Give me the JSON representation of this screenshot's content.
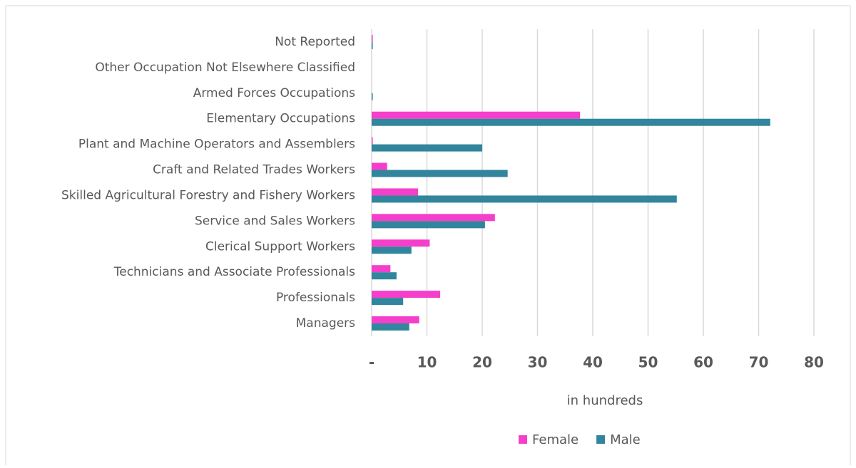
{
  "chart_data": {
    "type": "bar",
    "orientation": "horizontal",
    "x_label": "in hundreds",
    "categories": [
      "Not Reported",
      "Other Occupation Not Elsewhere Classified",
      "Armed Forces Occupations",
      "Elementary Occupations",
      "Plant and Machine Operators and Assemblers",
      "Craft and Related Trades Workers",
      "Skilled Agricultural Forestry and Fishery Workers",
      "Service and Sales Workers",
      "Clerical Support Workers",
      "Technicians and Associate Professionals",
      "Professionals",
      "Managers"
    ],
    "series": [
      {
        "name": "Female",
        "color": "#f53fcb",
        "values": [
          0.2,
          0,
          0,
          37.7,
          0.2,
          2.8,
          8.4,
          22.3,
          10.5,
          3.4,
          12.4,
          8.6
        ]
      },
      {
        "name": "Male",
        "color": "#31859c",
        "values": [
          0.2,
          0,
          0.2,
          72.1,
          20,
          24.6,
          55.2,
          20.5,
          7.2,
          4.5,
          5.7,
          6.8
        ]
      }
    ],
    "xlim": [
      0,
      80
    ],
    "xticks": [
      {
        "value": 0,
        "label": "-"
      },
      10,
      20,
      30,
      40,
      50,
      60,
      70,
      80
    ],
    "grid": true,
    "legend": "bottom"
  }
}
